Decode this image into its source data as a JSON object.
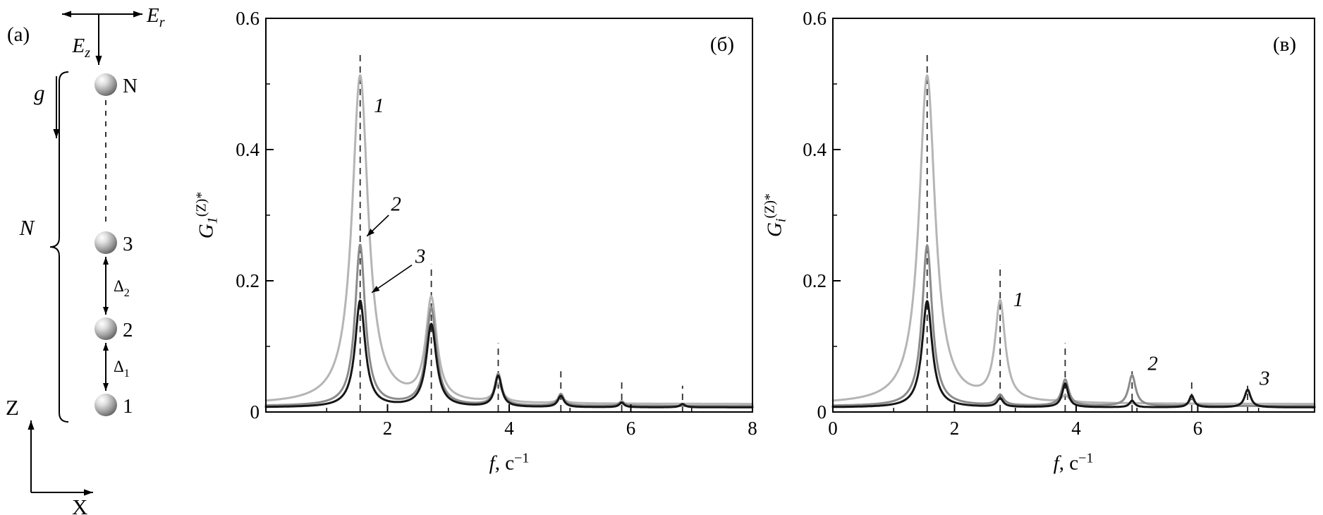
{
  "figure": {
    "panel_a": {
      "label": "(a)",
      "field_r": {
        "base": "E",
        "sub": "r"
      },
      "field_z": {
        "base": "E",
        "sub": "z"
      },
      "gravity": "g",
      "count": "N",
      "spheres": [
        "N",
        "3",
        "2",
        "1"
      ],
      "gap_upper": {
        "base": "Δ",
        "sub": "2"
      },
      "gap_lower": {
        "base": "Δ",
        "sub": "1"
      },
      "axis_vertical": "Z",
      "axis_horizontal": "X"
    },
    "colors": {
      "curve_light": "#b5b5b5",
      "curve_medium": "#8b8b8b",
      "curve_dark": "#161616",
      "axis": "#000000"
    }
  },
  "chart_data": [
    {
      "type": "line",
      "panel_label": "(б)",
      "xlabel": {
        "italic": "f",
        "rest": ", с",
        "sup": "−1"
      },
      "ylabel": {
        "base": "G",
        "sub": "1",
        "sup": "(Z)*"
      },
      "xlim": [
        0,
        8
      ],
      "ylim": [
        0,
        0.6
      ],
      "xticks": [
        2,
        4,
        6,
        8
      ],
      "xtick_labels": [
        "2",
        "4",
        "6",
        "8"
      ],
      "xticks_minor": [
        1,
        3,
        5,
        7
      ],
      "yticks": [
        0,
        0.2,
        0.4,
        0.6
      ],
      "ytick_labels": [
        "0",
        "0.2",
        "0.4",
        "0.6"
      ],
      "yticks_minor": [
        0.1,
        0.3,
        0.5
      ],
      "grid": false,
      "legend": "none",
      "dashed_resonances": [
        {
          "x": 1.55,
          "h": 0.55
        },
        {
          "x": 2.72,
          "h": 0.225
        },
        {
          "x": 3.82,
          "h": 0.105
        },
        {
          "x": 4.85,
          "h": 0.062
        },
        {
          "x": 5.85,
          "h": 0.046
        },
        {
          "x": 6.85,
          "h": 0.04
        }
      ],
      "series": [
        {
          "name": "1",
          "color": "#b5b5b5",
          "baseline": 0.012,
          "peaks": [
            [
              1.55,
              0.5,
              0.16
            ],
            [
              2.72,
              0.155,
              0.11
            ],
            [
              3.82,
              0.028,
              0.08
            ],
            [
              4.85,
              0.01,
              0.06
            ]
          ]
        },
        {
          "name": "2",
          "color": "#8b8b8b",
          "baseline": 0.009,
          "peaks": [
            [
              1.55,
              0.245,
              0.1
            ],
            [
              2.72,
              0.148,
              0.1
            ],
            [
              3.82,
              0.048,
              0.07
            ],
            [
              4.85,
              0.018,
              0.06
            ],
            [
              5.85,
              0.007,
              0.05
            ]
          ]
        },
        {
          "name": "3",
          "color": "#161616",
          "baseline": 0.007,
          "peaks": [
            [
              1.55,
              0.162,
              0.1
            ],
            [
              2.72,
              0.126,
              0.1
            ],
            [
              3.82,
              0.047,
              0.07
            ],
            [
              4.85,
              0.017,
              0.06
            ],
            [
              5.85,
              0.007,
              0.05
            ],
            [
              6.85,
              0.005,
              0.05
            ]
          ]
        }
      ],
      "annotations": [
        {
          "text": "1",
          "x": 1.86,
          "y": 0.468
        },
        {
          "text": "2",
          "x": 2.14,
          "y": 0.318,
          "arrow": [
            2.02,
            0.3,
            1.66,
            0.268
          ]
        },
        {
          "text": "3",
          "x": 2.54,
          "y": 0.238,
          "arrow": [
            2.4,
            0.224,
            1.74,
            0.182
          ]
        }
      ]
    },
    {
      "type": "line",
      "panel_label": "(в)",
      "xlabel": {
        "italic": "f",
        "rest": ", с",
        "sup": "−1"
      },
      "ylabel": {
        "base": "G",
        "sub": "i",
        "sup": "(Z)*"
      },
      "xlim": [
        0,
        7.92
      ],
      "ylim": [
        0,
        0.6
      ],
      "xticks": [
        0,
        2,
        4,
        6
      ],
      "xtick_labels": [
        "0",
        "2",
        "4",
        "6"
      ],
      "xticks_minor": [
        1,
        3,
        5,
        7
      ],
      "yticks": [
        0,
        0.2,
        0.4,
        0.6
      ],
      "ytick_labels": [
        "0",
        "0.2",
        "0.4",
        "0.6"
      ],
      "yticks_minor": [
        0.1,
        0.3,
        0.5
      ],
      "grid": false,
      "legend": "none",
      "dashed_resonances": [
        {
          "x": 1.55,
          "h": 0.55
        },
        {
          "x": 2.75,
          "h": 0.225
        },
        {
          "x": 3.82,
          "h": 0.105
        },
        {
          "x": 4.92,
          "h": 0.062
        },
        {
          "x": 5.9,
          "h": 0.046
        },
        {
          "x": 6.82,
          "h": 0.04
        }
      ],
      "series": [
        {
          "name": "1",
          "color": "#b5b5b5",
          "baseline": 0.012,
          "peaks": [
            [
              1.55,
              0.5,
              0.16
            ],
            [
              2.75,
              0.15,
              0.1
            ],
            [
              3.82,
              0.01,
              0.07
            ]
          ]
        },
        {
          "name": "2",
          "color": "#8b8b8b",
          "baseline": 0.009,
          "peaks": [
            [
              1.55,
              0.245,
              0.1
            ],
            [
              2.75,
              0.016,
              0.07
            ],
            [
              3.82,
              0.04,
              0.07
            ],
            [
              4.92,
              0.047,
              0.07
            ],
            [
              5.9,
              0.012,
              0.05
            ]
          ]
        },
        {
          "name": "3",
          "color": "#161616",
          "baseline": 0.007,
          "peaks": [
            [
              1.55,
              0.162,
              0.1
            ],
            [
              2.75,
              0.013,
              0.06
            ],
            [
              3.82,
              0.036,
              0.06
            ],
            [
              4.92,
              0.01,
              0.05
            ],
            [
              5.9,
              0.018,
              0.05
            ],
            [
              6.82,
              0.027,
              0.06
            ]
          ]
        }
      ],
      "annotations": [
        {
          "text": "1",
          "x": 3.05,
          "y": 0.172
        },
        {
          "text": "2",
          "x": 5.26,
          "y": 0.075
        },
        {
          "text": "3",
          "x": 7.1,
          "y": 0.052
        }
      ]
    }
  ]
}
